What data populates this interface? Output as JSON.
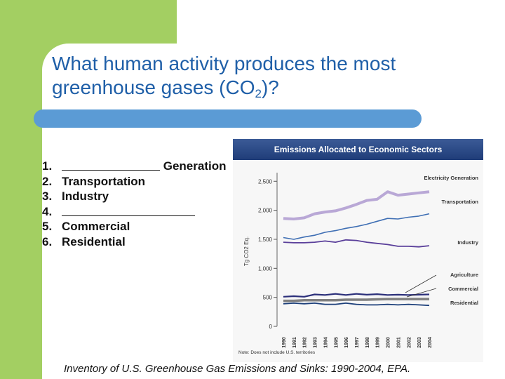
{
  "slide": {
    "title_main": "What human activity produces the most greenhouse gases (CO",
    "title_sub": "2",
    "title_end": ")?"
  },
  "list": {
    "items": [
      {
        "num": "1.",
        "text": "Generation",
        "blank_before": true
      },
      {
        "num": "2.",
        "text": "Transportation"
      },
      {
        "num": "3.",
        "text": "Industry"
      },
      {
        "num": "4.",
        "text": "",
        "blank_before": true
      },
      {
        "num": "5.",
        "text": "Commercial"
      },
      {
        "num": "6.",
        "text": "Residential"
      }
    ]
  },
  "caption": "Inventory of U.S. Greenhouse Gas Emissions and Sinks: 1990-2004, EPA.",
  "colors": {
    "green": "#a3cf62",
    "title_blue": "#1f5fa8",
    "bar_blue": "#5b9bd5",
    "electricity": "#b9a8d6",
    "transportation": "#3f6fb4",
    "industry": "#5a3f9a",
    "agriculture": "#2b2f7a",
    "commercial": "#808080",
    "residential": "#1c3f7a"
  },
  "chart_data": {
    "type": "line",
    "title": "Emissions Allocated to Economic Sectors",
    "ylabel": "Tg CO2 Eq.",
    "ylim": [
      0,
      2600
    ],
    "yticks": [
      "0",
      "500",
      "1,000",
      "1,500",
      "2,000",
      "2,500"
    ],
    "x": [
      "1990",
      "1991",
      "1992",
      "1993",
      "1994",
      "1995",
      "1996",
      "1997",
      "1998",
      "1999",
      "2000",
      "2001",
      "2002",
      "2003",
      "2004"
    ],
    "series": [
      {
        "name": "Electricity Generation",
        "values": [
          1860,
          1850,
          1870,
          1940,
          1970,
          1990,
          2040,
          2100,
          2170,
          2190,
          2320,
          2260,
          2280,
          2300,
          2320
        ]
      },
      {
        "name": "Transportation",
        "values": [
          1530,
          1500,
          1540,
          1570,
          1620,
          1650,
          1690,
          1720,
          1760,
          1810,
          1860,
          1850,
          1880,
          1900,
          1940
        ]
      },
      {
        "name": "Industry",
        "values": [
          1450,
          1440,
          1440,
          1450,
          1470,
          1450,
          1490,
          1480,
          1450,
          1430,
          1410,
          1380,
          1380,
          1370,
          1390
        ]
      },
      {
        "name": "Agriculture",
        "values": [
          510,
          520,
          510,
          550,
          540,
          560,
          540,
          560,
          545,
          555,
          540,
          545,
          540,
          545,
          550
        ]
      },
      {
        "name": "Commercial",
        "values": [
          440,
          440,
          450,
          450,
          450,
          450,
          460,
          460,
          460,
          465,
          470,
          470,
          470,
          470,
          470
        ]
      },
      {
        "name": "Residential",
        "values": [
          390,
          400,
          390,
          400,
          380,
          380,
          400,
          380,
          370,
          370,
          380,
          370,
          380,
          370,
          360
        ]
      }
    ],
    "note": "Note: Does not include U.S. territories"
  }
}
